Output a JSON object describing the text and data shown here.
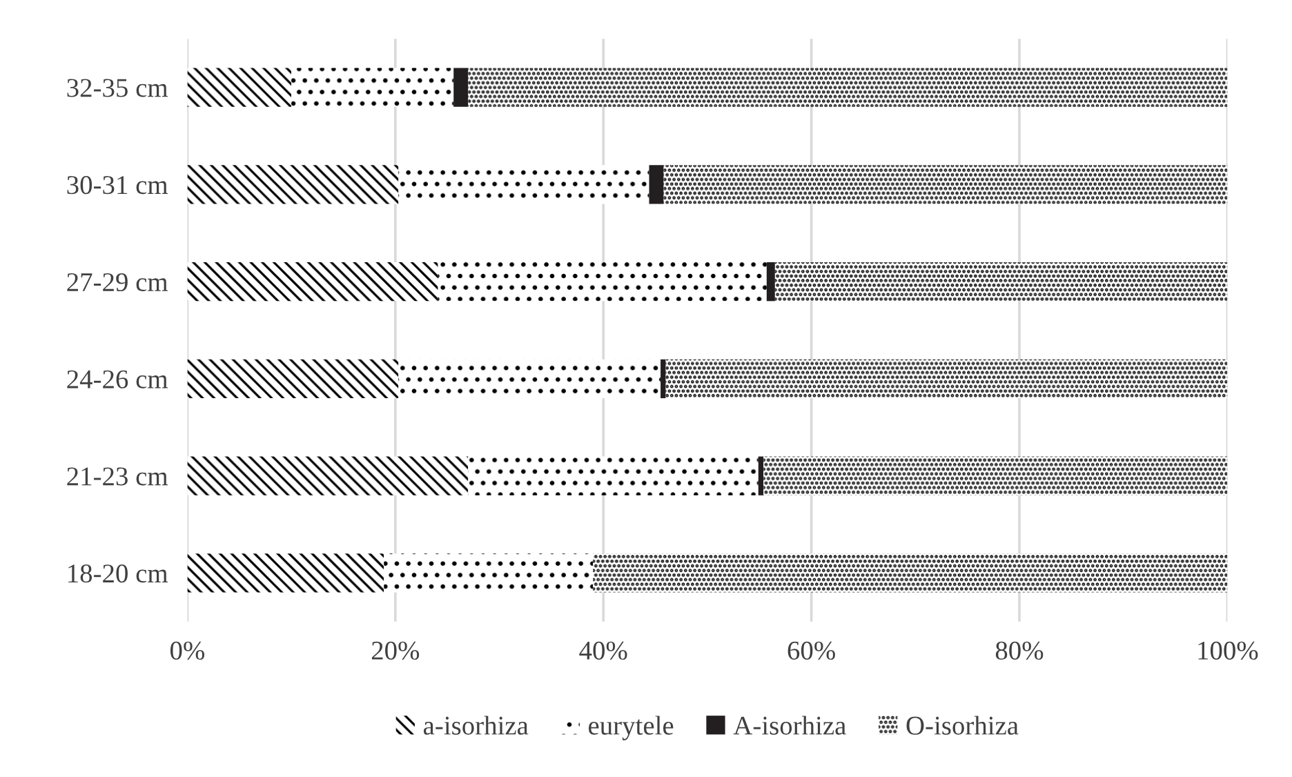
{
  "chart_data": {
    "type": "bar",
    "orientation": "horizontal",
    "stacked": true,
    "categories": [
      "32-35 cm",
      "30-31 cm",
      "27-29 cm",
      "24-26 cm",
      "21-23 cm",
      "18-20 cm"
    ],
    "series": [
      {
        "name": "a-isorhiza",
        "color": "#000000",
        "values": [
          10,
          20.3,
          24.1,
          20.3,
          27,
          18.9
        ]
      },
      {
        "name": "eurytele",
        "color": "#000000",
        "values": [
          15.6,
          24.1,
          31.6,
          25.2,
          27.9,
          20.1
        ]
      },
      {
        "name": "A-isorhiza",
        "color": "#231f20",
        "values": [
          1.4,
          1.4,
          0.8,
          0.5,
          0.5,
          0
        ]
      },
      {
        "name": "O-isorhiza",
        "color": "#000000",
        "values": [
          73,
          54.2,
          43.5,
          54,
          44.6,
          61
        ]
      }
    ],
    "xlim": [
      0,
      100
    ],
    "xticks": [
      {
        "value": 0,
        "label": "0%"
      },
      {
        "value": 20,
        "label": "20%"
      },
      {
        "value": 40,
        "label": "40%"
      },
      {
        "value": 60,
        "label": "60%"
      },
      {
        "value": 80,
        "label": "80%"
      },
      {
        "value": 100,
        "label": "100%"
      }
    ],
    "grid": "x",
    "legend": "bottom"
  }
}
